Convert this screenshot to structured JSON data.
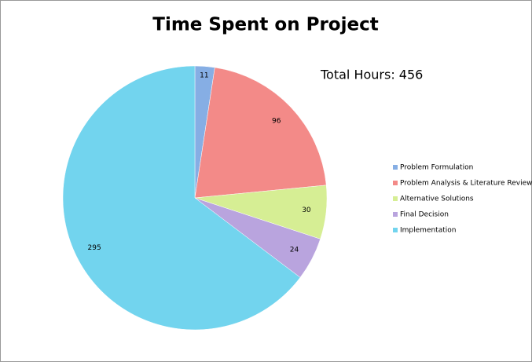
{
  "chart_data": {
    "type": "pie",
    "title": "Time Spent on Project",
    "annotation": "Total Hours: 456",
    "categories": [
      "Problem Formulation",
      "Problem Analysis & Literature Review",
      "Alternative Solutions",
      "Final Decision",
      "Implementation"
    ],
    "values": [
      11,
      96,
      30,
      24,
      295
    ],
    "colors": [
      "#86aee4",
      "#f38a88",
      "#d6ee94",
      "#b9a4de",
      "#72d4ee"
    ],
    "legend": "right"
  }
}
